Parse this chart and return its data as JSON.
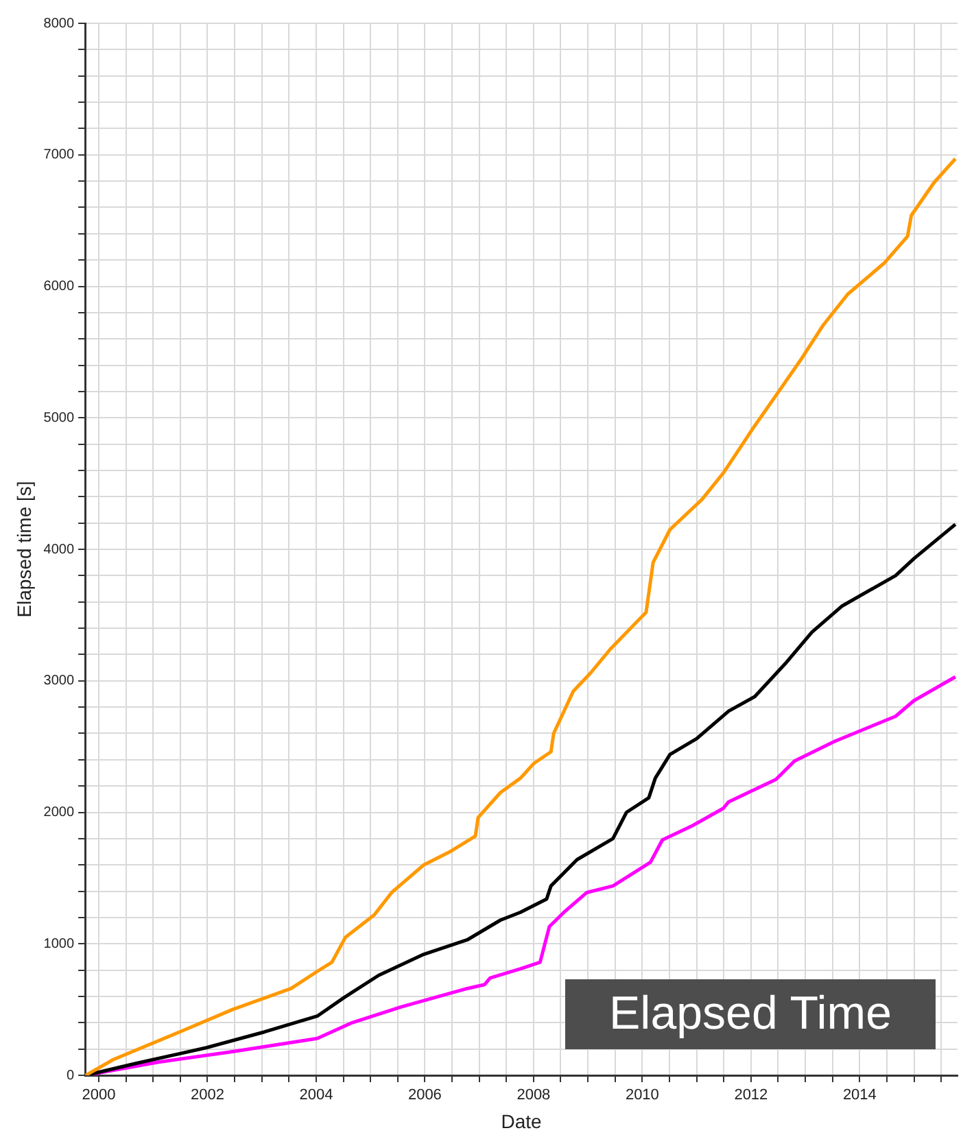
{
  "chart_data": {
    "type": "line",
    "xlabel": "Date",
    "ylabel": "Elapsed time [s]",
    "annotations": [
      "Elapsed Time"
    ],
    "xlim": [
      1999.75,
      2015.8
    ],
    "xticks": [
      2000,
      {
        "value": 2000.5,
        "label": null
      },
      {
        "value": 2001,
        "label": null
      },
      {
        "value": 2001.5,
        "label": null
      },
      2002,
      {
        "value": 2002.5,
        "label": null
      },
      {
        "value": 2003,
        "label": null
      },
      {
        "value": 2003.5,
        "label": null
      },
      2004,
      {
        "value": 2004.5,
        "label": null
      },
      {
        "value": 2005,
        "label": null
      },
      {
        "value": 2005.5,
        "label": null
      },
      2006,
      {
        "value": 2006.5,
        "label": null
      },
      {
        "value": 2007,
        "label": null
      },
      {
        "value": 2007.5,
        "label": null
      },
      2008,
      {
        "value": 2008.5,
        "label": null
      },
      {
        "value": 2009,
        "label": null
      },
      {
        "value": 2009.5,
        "label": null
      },
      2010,
      {
        "value": 2010.5,
        "label": null
      },
      {
        "value": 2011,
        "label": null
      },
      {
        "value": 2011.5,
        "label": null
      },
      2012,
      {
        "value": 2012.5,
        "label": null
      },
      {
        "value": 2013,
        "label": null
      },
      {
        "value": 2013.5,
        "label": null
      },
      2014,
      {
        "value": 2014.5,
        "label": null
      },
      {
        "value": 2015,
        "label": null
      },
      {
        "value": 2015.5,
        "label": null
      }
    ],
    "ylim": [
      0,
      8000
    ],
    "yticks": [
      0,
      {
        "value": 200,
        "label": null
      },
      {
        "value": 400,
        "label": null
      },
      {
        "value": 600,
        "label": null
      },
      {
        "value": 800,
        "label": null
      },
      1000,
      {
        "value": 1200,
        "label": null
      },
      {
        "value": 1400,
        "label": null
      },
      {
        "value": 1600,
        "label": null
      },
      {
        "value": 1800,
        "label": null
      },
      2000,
      {
        "value": 2200,
        "label": null
      },
      {
        "value": 2400,
        "label": null
      },
      {
        "value": 2600,
        "label": null
      },
      {
        "value": 2800,
        "label": null
      },
      3000,
      {
        "value": 3200,
        "label": null
      },
      {
        "value": 3400,
        "label": null
      },
      {
        "value": 3600,
        "label": null
      },
      {
        "value": 3800,
        "label": null
      },
      4000,
      {
        "value": 4200,
        "label": null
      },
      {
        "value": 4400,
        "label": null
      },
      {
        "value": 4600,
        "label": null
      },
      {
        "value": 4800,
        "label": null
      },
      5000,
      {
        "value": 5200,
        "label": null
      },
      {
        "value": 5400,
        "label": null
      },
      {
        "value": 5600,
        "label": null
      },
      {
        "value": 5800,
        "label": null
      },
      6000,
      {
        "value": 6200,
        "label": null
      },
      {
        "value": 6400,
        "label": null
      },
      {
        "value": 6600,
        "label": null
      },
      {
        "value": 6800,
        "label": null
      },
      7000,
      {
        "value": 7200,
        "label": null
      },
      {
        "value": 7400,
        "label": null
      },
      {
        "value": 7600,
        "label": null
      },
      {
        "value": 7800,
        "label": null
      },
      8000
    ],
    "grid": true,
    "legend": false,
    "marker": "none",
    "line_style": "solid",
    "series": [
      {
        "color": "#ff9900",
        "x": [
          1999.76,
          2000.27,
          2001.49,
          2002.46,
          2003.54,
          2004.02,
          2004.29,
          2004.54,
          2005.07,
          2005.39,
          2005.98,
          2006.46,
          2006.93,
          2006.98,
          2007.39,
          2007.76,
          2008.0,
          2008.32,
          2008.37,
          2008.73,
          2009.05,
          2009.41,
          2009.95,
          2010.07,
          2010.2,
          2010.51,
          2011.1,
          2011.49,
          2011.78,
          2012.02,
          2012.46,
          2012.93,
          2013.32,
          2013.78,
          2014.46,
          2014.88,
          2014.95,
          2015.37,
          2015.76
        ],
        "values": [
          0,
          120,
          330,
          500,
          660,
          790,
          860,
          1050,
          1220,
          1390,
          1600,
          1700,
          1820,
          1960,
          2150,
          2260,
          2370,
          2460,
          2600,
          2920,
          3060,
          3240,
          3470,
          3520,
          3900,
          4150,
          4380,
          4580,
          4760,
          4910,
          5170,
          5450,
          5700,
          5940,
          6180,
          6380,
          6540,
          6790,
          6970
        ]
      },
      {
        "color": "#000000",
        "x": [
          1999.76,
          2000.68,
          2001.98,
          2003.05,
          2004.02,
          2004.51,
          2005.15,
          2005.98,
          2006.78,
          2007.39,
          2007.76,
          2008.24,
          2008.32,
          2008.8,
          2009.46,
          2009.71,
          2010.12,
          2010.24,
          2010.51,
          2011.0,
          2011.59,
          2012.07,
          2012.63,
          2013.12,
          2013.68,
          2014.66,
          2015.0,
          2015.76
        ],
        "values": [
          0,
          90,
          210,
          330,
          450,
          590,
          760,
          920,
          1030,
          1180,
          1240,
          1340,
          1440,
          1640,
          1800,
          2000,
          2110,
          2260,
          2440,
          2560,
          2770,
          2880,
          3130,
          3370,
          3570,
          3800,
          3930,
          4190
        ]
      },
      {
        "color": "#ff00ff",
        "x": [
          1999.76,
          2001.1,
          2002.46,
          2004.02,
          2004.66,
          2005.56,
          2006.78,
          2007.1,
          2007.2,
          2007.76,
          2008.12,
          2008.29,
          2008.56,
          2008.98,
          2009.46,
          2010.15,
          2010.37,
          2010.93,
          2011.49,
          2011.59,
          2012.46,
          2012.8,
          2013.54,
          2014.66,
          2015.0,
          2015.76
        ],
        "values": [
          0,
          100,
          180,
          280,
          400,
          520,
          660,
          690,
          740,
          810,
          860,
          1130,
          1240,
          1390,
          1440,
          1620,
          1790,
          1900,
          2030,
          2080,
          2250,
          2390,
          2540,
          2730,
          2850,
          3030
        ]
      }
    ]
  }
}
